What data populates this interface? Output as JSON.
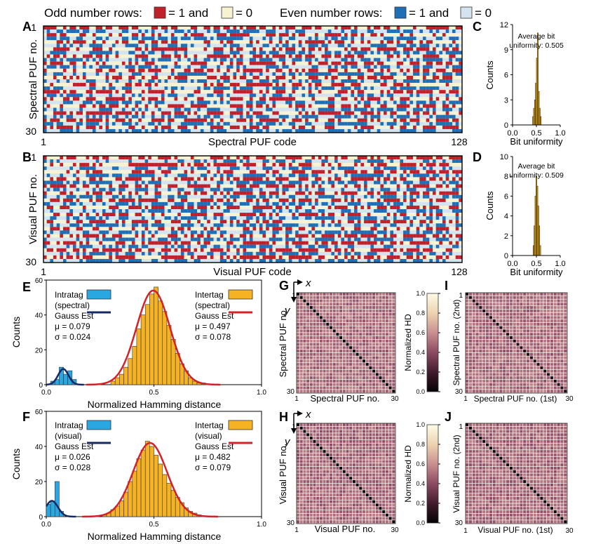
{
  "legend": {
    "odd_label": "Odd number rows:",
    "odd_one": "= 1 and",
    "odd_zero": "= 0",
    "even_label": "Even number rows:",
    "even_one": "= 1 and",
    "even_zero": "= 0",
    "colors": {
      "odd_one": "#c0202a",
      "odd_zero": "#f7f2d2",
      "even_one": "#1f6fb6",
      "even_zero": "#d4e3f0"
    }
  },
  "panels": {
    "A": "A",
    "B": "B",
    "C": "C",
    "D": "D",
    "E": "E",
    "F": "F",
    "G": "G",
    "H": "H",
    "I": "I",
    "J": "J"
  },
  "chart_data": [
    {
      "panel": "A",
      "type": "heatmap",
      "xlabel": "Spectral PUF code",
      "ylabel": "Spectral PUF no.",
      "xticks": [
        "1",
        "128"
      ],
      "yticks": [
        "1",
        "30"
      ],
      "rows": 30,
      "cols": 128,
      "one_fraction": 0.505
    },
    {
      "panel": "B",
      "type": "heatmap",
      "xlabel": "Visual PUF code",
      "ylabel": "Visual PUF no.",
      "xticks": [
        "1",
        "128"
      ],
      "yticks": [
        "1",
        "30"
      ],
      "rows": 30,
      "cols": 128,
      "one_fraction": 0.509
    },
    {
      "panel": "C",
      "type": "bar",
      "xlabel": "Bit uniformity",
      "ylabel": "Counts",
      "annotation": [
        "Average bit",
        "uniformity: 0.505"
      ],
      "xlim": [
        0,
        1
      ],
      "ylim": [
        0,
        12
      ],
      "xticks": [
        "0.0",
        "0.5",
        "1.0"
      ],
      "yticks": [
        "0",
        "3",
        "6",
        "9",
        "12"
      ],
      "bins": [
        0.42,
        0.44,
        0.46,
        0.48,
        0.5,
        0.52,
        0.54,
        0.56,
        0.58
      ],
      "bin_width": 0.02,
      "values": [
        1,
        2,
        3,
        5,
        8,
        11,
        4,
        2,
        1
      ]
    },
    {
      "panel": "D",
      "type": "bar",
      "xlabel": "Bit uniformity",
      "ylabel": "Counts",
      "annotation": [
        "Average bit",
        "uniformity: 0.509"
      ],
      "xlim": [
        0,
        1
      ],
      "ylim": [
        0,
        10
      ],
      "xticks": [
        "0.0",
        "0.5",
        "1.0"
      ],
      "yticks": [
        "0",
        "2",
        "4",
        "6",
        "8",
        "10"
      ],
      "bins": [
        0.43,
        0.45,
        0.47,
        0.49,
        0.51,
        0.53,
        0.55,
        0.57
      ],
      "bin_width": 0.02,
      "values": [
        1,
        3,
        6,
        8,
        7,
        5,
        3,
        1
      ]
    },
    {
      "panel": "E",
      "type": "bar",
      "xlabel": "Normalized Hamming distance",
      "ylabel": "Counts",
      "xlim": [
        0,
        1
      ],
      "ylim": [
        0,
        60
      ],
      "xticks": [
        "0.0",
        "0.5",
        "1.0"
      ],
      "yticks": [
        "0",
        "20",
        "40",
        "60"
      ],
      "bin_width": 0.02,
      "series": [
        {
          "name": "Intratag (spectral)",
          "color": "#2aa6e0",
          "bins": [
            0.02,
            0.04,
            0.06,
            0.08,
            0.1,
            0.12
          ],
          "values": [
            2,
            3,
            10,
            6,
            8,
            3
          ]
        },
        {
          "name": "Intertag (spectral)",
          "color": "#f5b324",
          "bins": [
            0.3,
            0.32,
            0.34,
            0.36,
            0.38,
            0.4,
            0.42,
            0.44,
            0.46,
            0.48,
            0.5,
            0.52,
            0.54,
            0.56,
            0.58,
            0.6,
            0.62,
            0.64,
            0.66,
            0.68,
            0.7,
            0.72
          ],
          "values": [
            2,
            4,
            6,
            10,
            15,
            22,
            32,
            40,
            46,
            52,
            56,
            48,
            42,
            34,
            26,
            18,
            12,
            8,
            4,
            2,
            1,
            1
          ]
        }
      ],
      "fits": [
        {
          "name": "Gauss Est",
          "mu": 0.079,
          "sigma": 0.024,
          "color": "#142a66",
          "peak": 9
        },
        {
          "name": "Gauss Est",
          "mu": 0.497,
          "sigma": 0.078,
          "color": "#d42027",
          "peak": 54
        }
      ],
      "legend": {
        "left": {
          "lines": [
            "Intratag",
            "(spectral)",
            "Gauss Est",
            "μ = 0.079",
            "σ = 0.024"
          ]
        },
        "right": {
          "lines": [
            "Intertag",
            "(spectral)",
            "Gauss Est",
            "μ = 0.497",
            "σ = 0.078"
          ]
        }
      }
    },
    {
      "panel": "F",
      "type": "bar",
      "xlabel": "Normalized Hamming distance",
      "ylabel": "Counts",
      "xlim": [
        0,
        1
      ],
      "ylim": [
        0,
        60
      ],
      "xticks": [
        "0.0",
        "0.5",
        "1.0"
      ],
      "yticks": [
        "0",
        "20",
        "40",
        "60"
      ],
      "bin_width": 0.02,
      "series": [
        {
          "name": "Intratag (visual)",
          "color": "#2aa6e0",
          "bins": [
            0.0,
            0.02,
            0.04,
            0.06
          ],
          "values": [
            7,
            9,
            20,
            3
          ]
        },
        {
          "name": "Intertag (visual)",
          "color": "#f5b324",
          "bins": [
            0.26,
            0.28,
            0.3,
            0.32,
            0.34,
            0.36,
            0.38,
            0.4,
            0.42,
            0.44,
            0.46,
            0.48,
            0.5,
            0.52,
            0.54,
            0.56,
            0.58,
            0.6,
            0.62,
            0.64,
            0.66,
            0.68,
            0.7
          ],
          "values": [
            1,
            2,
            4,
            6,
            9,
            14,
            20,
            26,
            33,
            38,
            43,
            40,
            35,
            30,
            24,
            19,
            15,
            11,
            8,
            5,
            3,
            2,
            1
          ]
        }
      ],
      "fits": [
        {
          "name": "Gauss Est",
          "mu": 0.026,
          "sigma": 0.028,
          "color": "#142a66",
          "peak": 9
        },
        {
          "name": "Gauss Est",
          "mu": 0.482,
          "sigma": 0.079,
          "color": "#d42027",
          "peak": 42
        }
      ],
      "legend": {
        "left": {
          "lines": [
            "Intratag",
            "(visual)",
            "Gauss Est",
            "μ = 0.026",
            "σ = 0.028"
          ]
        },
        "right": {
          "lines": [
            "Intertag",
            "(visual)",
            "Gauss Est",
            "μ = 0.482",
            "σ = 0.079"
          ]
        }
      }
    },
    {
      "panel": "G",
      "type": "heatmap",
      "xlabel": "Spectral PUF no.",
      "ylabel": "Spectral PUF no.",
      "xticks": [
        "1",
        "30"
      ],
      "yticks": [
        "1",
        "30"
      ],
      "axis_markers": {
        "x": "x",
        "y": "y"
      },
      "rows": 30,
      "cols": 30,
      "diagonal": 0.0,
      "off_diagonal_mean": 0.497
    },
    {
      "panel": "H",
      "type": "heatmap",
      "xlabel": "Visual PUF no.",
      "ylabel": "Visual PUF no.",
      "xticks": [
        "1",
        "30"
      ],
      "yticks": [
        "1",
        "30"
      ],
      "axis_markers": {
        "x": "x",
        "y": "y"
      },
      "rows": 30,
      "cols": 30,
      "diagonal": 0.0,
      "off_diagonal_mean": 0.482
    },
    {
      "panel": "I",
      "type": "heatmap",
      "xlabel": "Spectral PUF no. (1st)",
      "ylabel": "Spectral PUF no. (2nd)",
      "xticks": [
        "1",
        "30"
      ],
      "yticks": [
        "1",
        "30"
      ],
      "rows": 30,
      "cols": 30,
      "diagonal": 0.079,
      "off_diagonal_mean": 0.497
    },
    {
      "panel": "J",
      "type": "heatmap",
      "xlabel": "Visual PUF no. (1st)",
      "ylabel": "Visual PUF no. (2nd)",
      "xticks": [
        "1",
        "30"
      ],
      "yticks": [
        "1",
        "30"
      ],
      "rows": 30,
      "cols": 30,
      "diagonal": 0.026,
      "off_diagonal_mean": 0.482
    }
  ],
  "colorbars": [
    {
      "label": "Normalized HD",
      "ticks": [
        "0.0",
        "0.2",
        "0.4",
        "0.6",
        "0.8",
        "1.0"
      ],
      "range": [
        0,
        1
      ]
    },
    {
      "label": "Normalized HD",
      "ticks": [
        "0.0",
        "0.2",
        "0.4",
        "0.6",
        "0.8",
        "1.0"
      ],
      "range": [
        0,
        1
      ]
    }
  ]
}
